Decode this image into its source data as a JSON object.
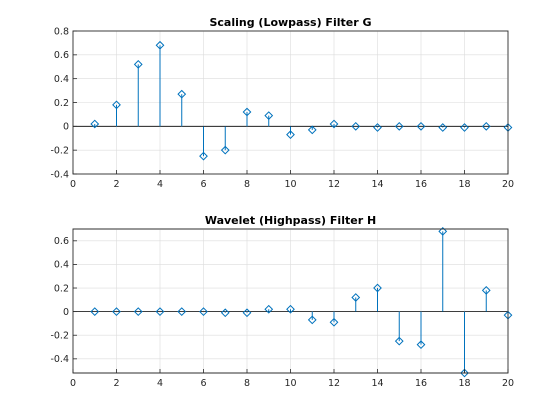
{
  "colors": {
    "stem": "#0072bd"
  },
  "chart_data": [
    {
      "type": "stem",
      "title": "Scaling (Lowpass) Filter G",
      "xlim": [
        0,
        20
      ],
      "ylim": [
        -0.4,
        0.8
      ],
      "xticks": [
        0,
        2,
        4,
        6,
        8,
        10,
        12,
        14,
        16,
        18,
        20
      ],
      "yticks": [
        -0.4,
        -0.2,
        0,
        0.2,
        0.4,
        0.6,
        0.8
      ],
      "xtick_labels": [
        "0",
        "2",
        "4",
        "6",
        "8",
        "10",
        "12",
        "14",
        "16",
        "18",
        "20"
      ],
      "ytick_labels": [
        "-0.4",
        "-0.2",
        "0",
        "0.2",
        "0.4",
        "0.6",
        "0.8"
      ],
      "grid": true,
      "x": [
        1,
        2,
        3,
        4,
        5,
        6,
        7,
        8,
        9,
        10,
        11,
        12,
        13,
        14,
        15,
        16,
        17,
        18,
        19,
        20
      ],
      "values": [
        0.02,
        0.18,
        0.52,
        0.68,
        0.27,
        -0.25,
        -0.2,
        0.12,
        0.09,
        -0.07,
        -0.03,
        0.02,
        0.0,
        -0.01,
        0.0,
        0.0,
        -0.01,
        -0.01,
        0.0,
        -0.01
      ]
    },
    {
      "type": "stem",
      "title": "Wavelet (Highpass) Filter H",
      "xlim": [
        0,
        20
      ],
      "ylim": [
        -0.52,
        0.7
      ],
      "xticks": [
        0,
        2,
        4,
        6,
        8,
        10,
        12,
        14,
        16,
        18,
        20
      ],
      "yticks": [
        -0.4,
        -0.2,
        0,
        0.2,
        0.4,
        0.6
      ],
      "xtick_labels": [
        "0",
        "2",
        "4",
        "6",
        "8",
        "10",
        "12",
        "14",
        "16",
        "18",
        "20"
      ],
      "ytick_labels": [
        "-0.4",
        "-0.2",
        "0",
        "0.2",
        "0.4",
        "0.6"
      ],
      "grid": true,
      "x": [
        1,
        2,
        3,
        4,
        5,
        6,
        7,
        8,
        9,
        10,
        11,
        12,
        13,
        14,
        15,
        16,
        17,
        18,
        19,
        20
      ],
      "values": [
        0.0,
        0.0,
        0.0,
        0.0,
        0.0,
        0.0,
        -0.01,
        -0.01,
        0.02,
        0.02,
        -0.07,
        -0.09,
        0.12,
        0.2,
        -0.25,
        -0.28,
        0.68,
        -0.52,
        0.18,
        -0.03
      ]
    }
  ]
}
